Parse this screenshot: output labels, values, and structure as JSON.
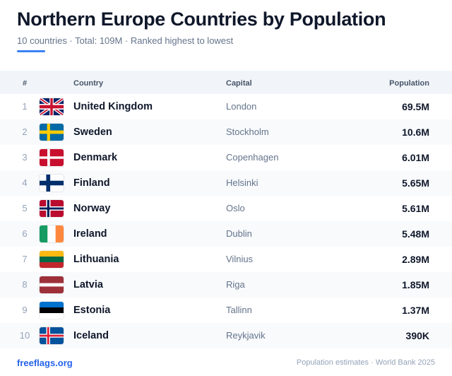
{
  "header": {
    "title": "Northern Europe Countries by Population",
    "subtitle": "10 countries · Total: 109M · Ranked highest to lowest",
    "accent_color": "#3b82f6"
  },
  "table": {
    "columns": {
      "rank": "#",
      "country": "Country",
      "capital": "Capital",
      "population": "Population"
    },
    "rows": [
      {
        "rank": "1",
        "flag": "flag-united-kingdom-icon",
        "country": "United Kingdom",
        "capital": "London",
        "population": "69.5M"
      },
      {
        "rank": "2",
        "flag": "flag-sweden-icon",
        "country": "Sweden",
        "capital": "Stockholm",
        "population": "10.6M"
      },
      {
        "rank": "3",
        "flag": "flag-denmark-icon",
        "country": "Denmark",
        "capital": "Copenhagen",
        "population": "6.01M"
      },
      {
        "rank": "4",
        "flag": "flag-finland-icon",
        "country": "Finland",
        "capital": "Helsinki",
        "population": "5.65M"
      },
      {
        "rank": "5",
        "flag": "flag-norway-icon",
        "country": "Norway",
        "capital": "Oslo",
        "population": "5.61M"
      },
      {
        "rank": "6",
        "flag": "flag-ireland-icon",
        "country": "Ireland",
        "capital": "Dublin",
        "population": "5.48M"
      },
      {
        "rank": "7",
        "flag": "flag-lithuania-icon",
        "country": "Lithuania",
        "capital": "Vilnius",
        "population": "2.89M"
      },
      {
        "rank": "8",
        "flag": "flag-latvia-icon",
        "country": "Latvia",
        "capital": "Riga",
        "population": "1.85M"
      },
      {
        "rank": "9",
        "flag": "flag-estonia-icon",
        "country": "Estonia",
        "capital": "Tallinn",
        "population": "1.37M"
      },
      {
        "rank": "10",
        "flag": "flag-iceland-icon",
        "country": "Iceland",
        "capital": "Reykjavik",
        "population": "390K"
      }
    ]
  },
  "footer": {
    "link": "freeflags.org",
    "note": "Population estimates · World Bank 2025",
    "link_color": "#2563eb"
  }
}
